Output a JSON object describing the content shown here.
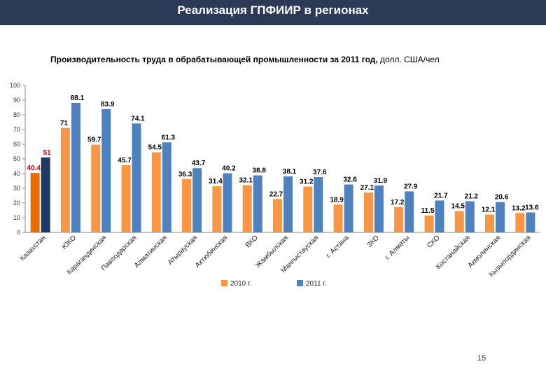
{
  "header": {
    "title": "Реализация ГПФИИР в регионах"
  },
  "subtitle": {
    "bold": "Производительность труда в обрабатывающей промышленности за 2011 год,",
    "units": "долл. США/чел"
  },
  "page_number": "15",
  "colors": {
    "series_2010": "#f79646",
    "series_2011": "#4f81bd",
    "first_2010": "#e36c09",
    "first_2011": "#1f3864",
    "header": "#2b3a57"
  },
  "chart_data": {
    "type": "bar",
    "categories": [
      "Казахстан",
      "ЮКО",
      "Карагандинская",
      "Павлодарская",
      "Алматинская",
      "Атырауская",
      "Актюбинская",
      "ВКО",
      "Жамбылская",
      "Мангыстауская",
      "г. Астана",
      "ЗКО",
      "г. Алматы",
      "СКО",
      "Костанайская",
      "Акмолинская",
      "Кызылординская"
    ],
    "series": [
      {
        "name": "2010 г.",
        "values": [
          40.4,
          71,
          59.7,
          45.7,
          54.5,
          36.3,
          31.4,
          32.1,
          22.7,
          31.2,
          18.9,
          27.1,
          17.2,
          11.5,
          14.5,
          12.1,
          13.2
        ]
      },
      {
        "name": "2011 г.",
        "values": [
          51,
          88.1,
          83.9,
          74.1,
          61.3,
          43.7,
          40.2,
          38.8,
          38.1,
          37.6,
          32.6,
          31.9,
          27.9,
          21.7,
          21.2,
          20.6,
          13.6
        ]
      }
    ],
    "ylim": [
      0,
      100
    ],
    "yticks": [
      0,
      10,
      20,
      30,
      40,
      50,
      60,
      70,
      80,
      90,
      100
    ],
    "grid": false,
    "legend": "bottom"
  }
}
